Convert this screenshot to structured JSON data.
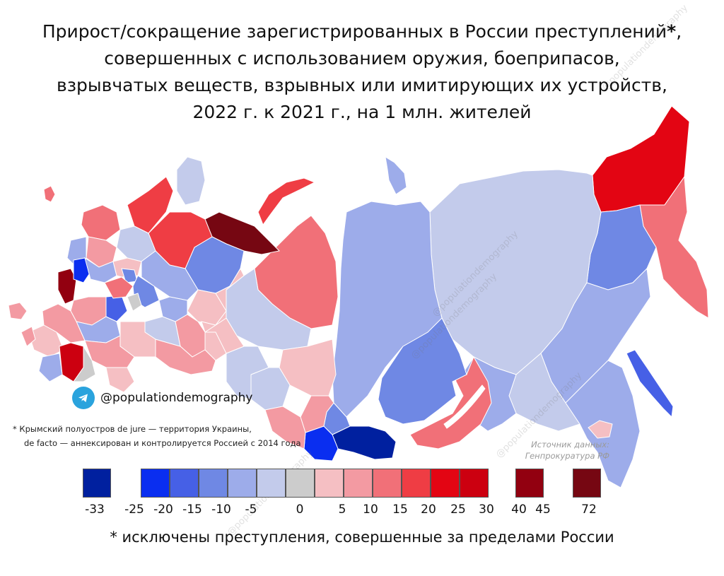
{
  "title": {
    "line1": "Прирост/сокращение зарегистрированных в России преступлений",
    "line1_mark": "*",
    "line1_end": ",",
    "line2": "совершенных с использованием оружия, боеприпасов,",
    "line3": "взрывчатых веществ, взрывных или имитирующих их устройств,",
    "line4": "2022 г. к 2021 г., на 1 млн. жителей"
  },
  "telegram": {
    "icon": "telegram-icon",
    "handle": "@populationdemography"
  },
  "crimea_note": {
    "line1": "* Крымский полуостров de jure — территория Украины,",
    "line2": "de facto — аннексирован и контролируется Россией с 2014 года"
  },
  "source": {
    "line1": "Источник данных:",
    "line2": "Генпрокуратура РФ"
  },
  "watermark_text": "@populationdemography",
  "footnote": "* исключены преступления, совершенные за пределами России",
  "legend": {
    "bins": [
      {
        "color": "#00209f"
      },
      {
        "color": "#0a2ef0"
      },
      {
        "color": "#4660e6"
      },
      {
        "color": "#6f88e4"
      },
      {
        "color": "#9dacea"
      },
      {
        "color": "#c3cbeb"
      },
      {
        "color": "#cccccc"
      },
      {
        "color": "#f5bfc3"
      },
      {
        "color": "#f39aa2"
      },
      {
        "color": "#f17078"
      },
      {
        "color": "#ef3d44"
      },
      {
        "color": "#e30513"
      },
      {
        "color": "#cc0010"
      },
      {
        "color": "#920010"
      },
      {
        "color": "#760712"
      }
    ],
    "labels": [
      "-33",
      "-25",
      "-20",
      "-15",
      "-10",
      "-5",
      "0",
      "5",
      "10",
      "15",
      "20",
      "25",
      "30",
      "40",
      "45",
      "72"
    ]
  },
  "colors": {
    "map_outline": "#ffffff",
    "background": "#ffffff"
  }
}
